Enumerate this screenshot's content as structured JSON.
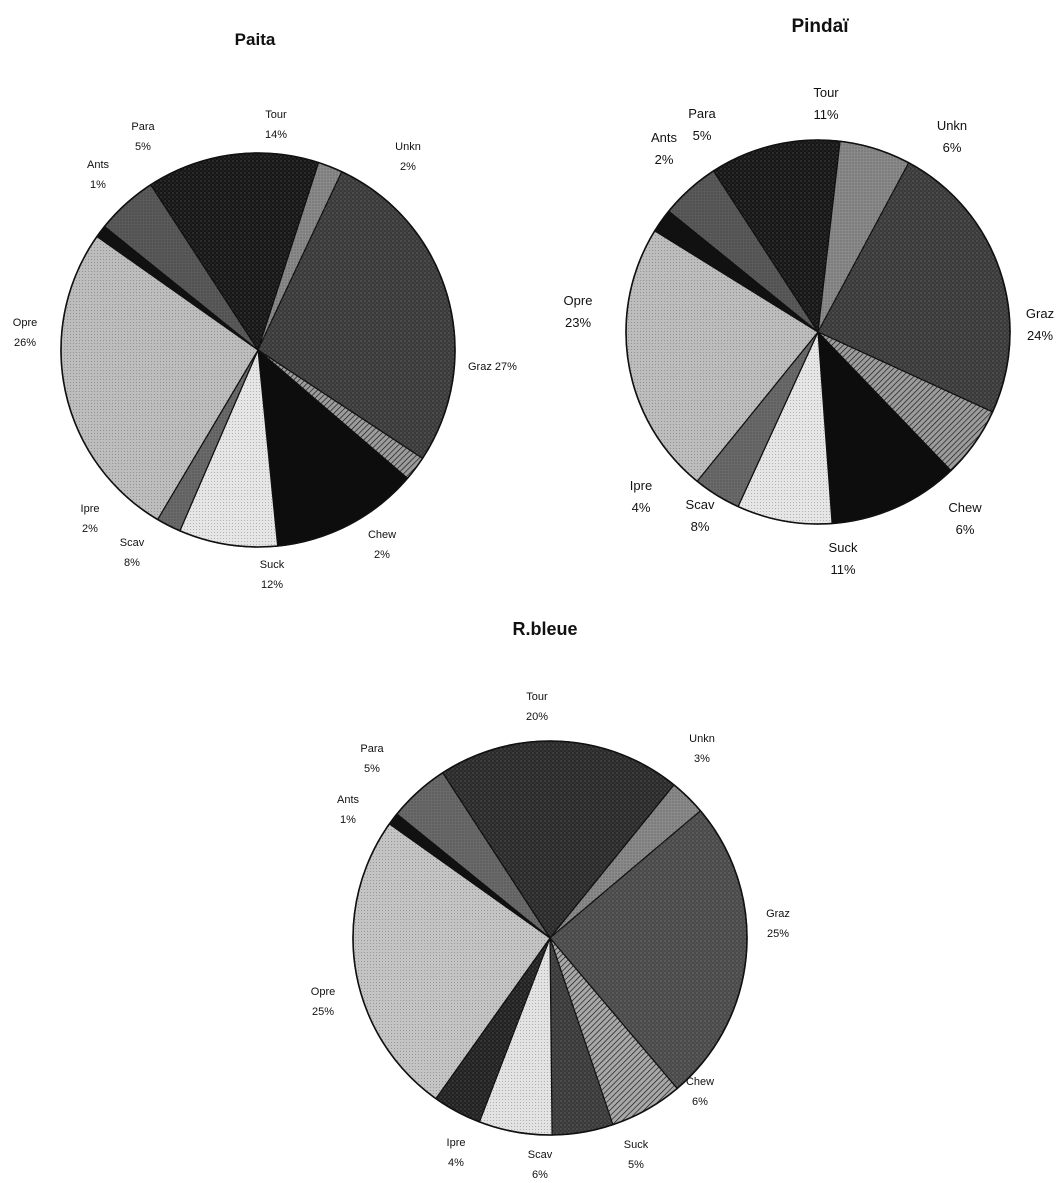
{
  "chart_data": [
    {
      "type": "pie",
      "title": "Paita",
      "start_category": "Tour",
      "direction": "clockwise",
      "slices": [
        {
          "label": "Tour",
          "percent_label": "14%",
          "value": 14,
          "color": "#161616",
          "pattern": "dots-dark"
        },
        {
          "label": "Unkn",
          "percent_label": "2%",
          "value": 2,
          "color": "#8a8a8a",
          "pattern": "dots-mid"
        },
        {
          "label": "Graz",
          "percent_label": "Graz 27%",
          "value": 27,
          "color": "#3a3a3a",
          "pattern": "dots-dark"
        },
        {
          "label": "Chew",
          "percent_label": "2%",
          "value": 2,
          "color": "#9c9c9c",
          "pattern": "lines"
        },
        {
          "label": "Suck",
          "percent_label": "12%",
          "value": 12,
          "color": "#0d0d0d",
          "pattern": "solid"
        },
        {
          "label": "Scav",
          "percent_label": "8%",
          "value": 8,
          "color": "#e6e6e6",
          "pattern": "dots-light"
        },
        {
          "label": "Ipre",
          "percent_label": "2%",
          "value": 2,
          "color": "#6a6a6a",
          "pattern": "dots-mid"
        },
        {
          "label": "Opre",
          "percent_label": "26%",
          "value": 26,
          "color": "#bdbdbd",
          "pattern": "dots-light"
        },
        {
          "label": "Ants",
          "percent_label": "1%",
          "value": 1,
          "color": "#111111",
          "pattern": "solid"
        },
        {
          "label": "Para",
          "percent_label": "5%",
          "value": 5,
          "color": "#5a5a5a",
          "pattern": "dots-mid"
        }
      ]
    },
    {
      "type": "pie",
      "title": "Pindaï",
      "start_category": "Tour",
      "direction": "clockwise",
      "slices": [
        {
          "label": "Tour",
          "percent_label": "11%",
          "value": 11,
          "color": "#161616",
          "pattern": "dots-dark"
        },
        {
          "label": "Unkn",
          "percent_label": "6%",
          "value": 6,
          "color": "#8a8a8a",
          "pattern": "dots-mid"
        },
        {
          "label": "Graz",
          "percent_label": "24%",
          "value": 24,
          "color": "#3a3a3a",
          "pattern": "dots-dark"
        },
        {
          "label": "Chew",
          "percent_label": "6%",
          "value": 6,
          "color": "#9c9c9c",
          "pattern": "lines"
        },
        {
          "label": "Suck",
          "percent_label": "11%",
          "value": 11,
          "color": "#0d0d0d",
          "pattern": "solid"
        },
        {
          "label": "Scav",
          "percent_label": "8%",
          "value": 8,
          "color": "#e6e6e6",
          "pattern": "dots-light"
        },
        {
          "label": "Ipre",
          "percent_label": "4%",
          "value": 4,
          "color": "#6a6a6a",
          "pattern": "dots-mid"
        },
        {
          "label": "Opre",
          "percent_label": "23%",
          "value": 23,
          "color": "#bdbdbd",
          "pattern": "dots-light"
        },
        {
          "label": "Ants",
          "percent_label": "2%",
          "value": 2,
          "color": "#111111",
          "pattern": "solid"
        },
        {
          "label": "Para",
          "percent_label": "5%",
          "value": 5,
          "color": "#5a5a5a",
          "pattern": "dots-mid"
        }
      ]
    },
    {
      "type": "pie",
      "title": "R.bleue",
      "start_category": "Tour",
      "direction": "clockwise",
      "slices": [
        {
          "label": "Tour",
          "percent_label": "20%",
          "value": 20,
          "color": "#2a2a2a",
          "pattern": "dots-dark"
        },
        {
          "label": "Unkn",
          "percent_label": "3%",
          "value": 3,
          "color": "#8a8a8a",
          "pattern": "dots-mid"
        },
        {
          "label": "Graz",
          "percent_label": "25%",
          "value": 25,
          "color": "#4a4a4a",
          "pattern": "dots-dark"
        },
        {
          "label": "Chew",
          "percent_label": "6%",
          "value": 6,
          "color": "#a8a8a8",
          "pattern": "lines"
        },
        {
          "label": "Suck",
          "percent_label": "5%",
          "value": 5,
          "color": "#3a3a3a",
          "pattern": "dots-dark"
        },
        {
          "label": "Scav",
          "percent_label": "6%",
          "value": 6,
          "color": "#e3e3e3",
          "pattern": "dots-light"
        },
        {
          "label": "Ipre",
          "percent_label": "4%",
          "value": 4,
          "color": "#222222",
          "pattern": "dots-dark"
        },
        {
          "label": "Opre",
          "percent_label": "25%",
          "value": 25,
          "color": "#c4c4c4",
          "pattern": "dots-light"
        },
        {
          "label": "Ants",
          "percent_label": "1%",
          "value": 1,
          "color": "#111111",
          "pattern": "solid"
        },
        {
          "label": "Para",
          "percent_label": "5%",
          "value": 5,
          "color": "#6a6a6a",
          "pattern": "dots-mid"
        }
      ]
    }
  ]
}
